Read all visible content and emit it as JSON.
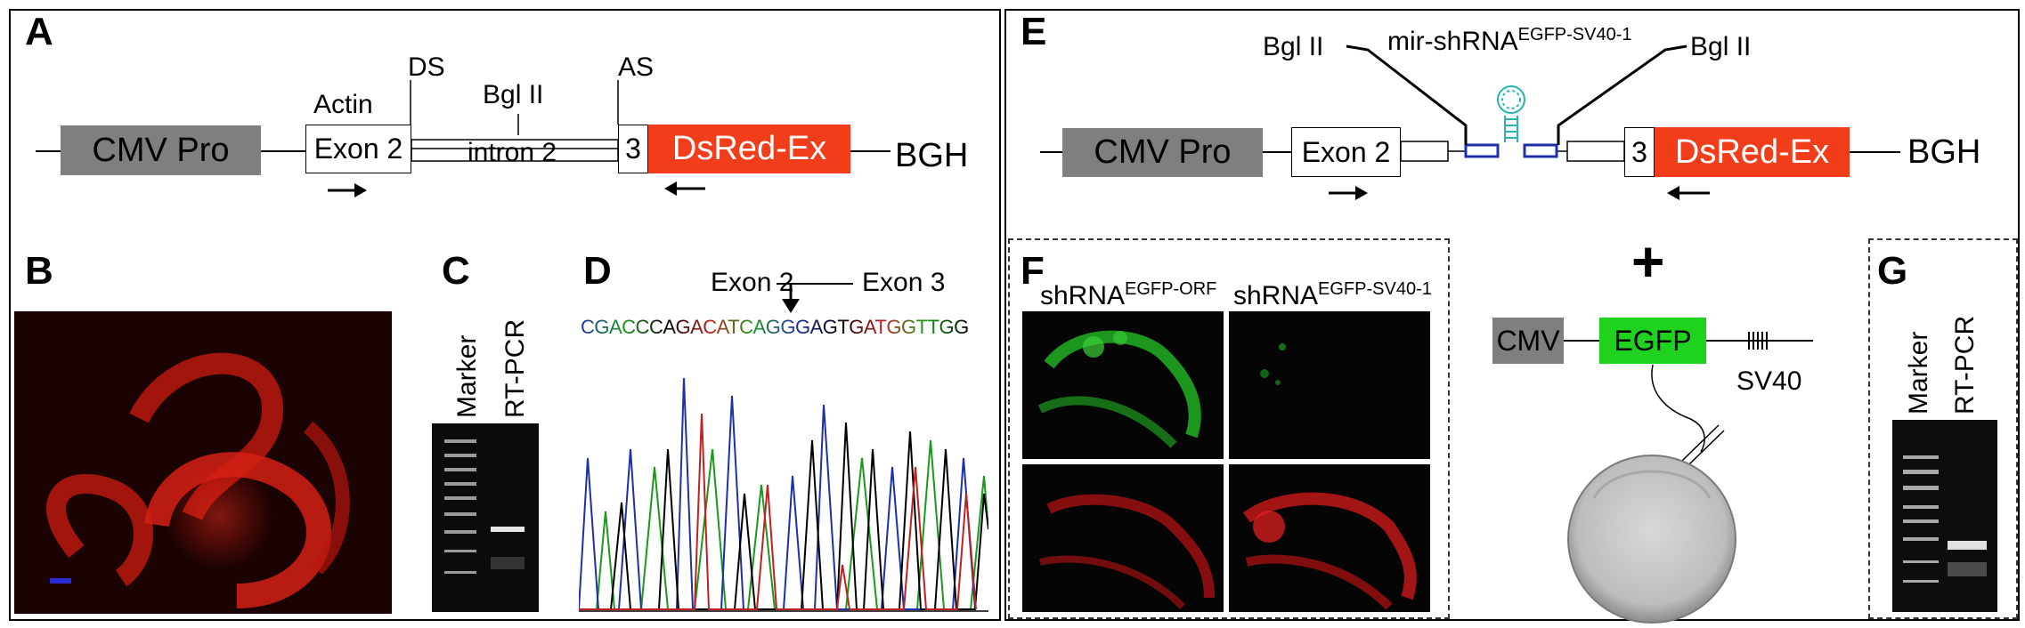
{
  "panels": {
    "a": "A",
    "b": "B",
    "c": "C",
    "d": "D",
    "e": "E",
    "f": "F",
    "g": "G"
  },
  "construct_a": {
    "cmv": "CMV Pro",
    "actin": "Actin",
    "exon2": "Exon 2",
    "ds": "DS",
    "bgl": "Bgl II",
    "intron": "intron 2",
    "as": "AS",
    "exon3": "3",
    "dsred": "DsRed-Ex",
    "bgh": "BGH"
  },
  "gel_c": {
    "marker": "Marker",
    "rtpcr": "RT-PCR"
  },
  "seq_d": {
    "exon2": "Exon 2",
    "exon3": "Exon 3",
    "sequence": "CGACCCAGACATCAGGGAGTGATGGTTGG"
  },
  "construct_e": {
    "bgl_left": "Bgl II",
    "bgl_right": "Bgl II",
    "mir_main": "mir-shRNA",
    "mir_sup": "EGFP-SV40-1",
    "cmv": "CMV Pro",
    "exon2": "Exon 2",
    "exon3": "3",
    "dsred": "DsRed-Ex",
    "bgh": "BGH"
  },
  "panel_f": {
    "col1_main": "shRNA",
    "col1_sup": "EGFP-ORF",
    "col2_main": "shRNA",
    "col2_sup": "EGFP-SV40-1"
  },
  "reporter": {
    "plus": "+",
    "cmv": "CMV",
    "egfp": "EGFP",
    "sv40": "SV40"
  },
  "gel_g": {
    "marker": "Marker",
    "rtpcr": "RT-PCR"
  },
  "colors": {
    "dsred": "#f23d1b",
    "egfp": "#1fd21f",
    "promoter_gray": "#7f7f7f",
    "linker_blue": "#1f2fa8",
    "hairpin_teal": "#2bb3b3"
  },
  "chromatogram_traces": [
    "A-green",
    "C-blue",
    "G-black",
    "T-red"
  ]
}
